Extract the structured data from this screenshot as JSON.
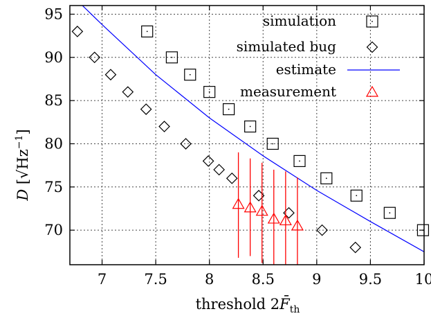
{
  "chart_data": {
    "type": "scatter",
    "xlabel": "threshold 2F̄th",
    "ylabel": "D [√Hz⁻¹]",
    "xlim": [
      6.7,
      10.0
    ],
    "ylim": [
      66.0,
      96.0
    ],
    "x_ticks": [
      7,
      7.5,
      8,
      8.5,
      9,
      9.5,
      10
    ],
    "x_tick_labels": [
      "7",
      "7.5",
      "8",
      "8.5",
      "9",
      "9.5",
      "10"
    ],
    "y_ticks": [
      70,
      75,
      80,
      85,
      90,
      95
    ],
    "y_tick_labels": [
      "70",
      "75",
      "80",
      "85",
      "90",
      "95"
    ],
    "grid": true,
    "legend_placement": "top-right",
    "series": [
      {
        "name": "simulation",
        "marker": "square",
        "color": "#000000",
        "points": [
          [
            7.42,
            93
          ],
          [
            7.65,
            90
          ],
          [
            7.82,
            88
          ],
          [
            8.0,
            86
          ],
          [
            8.18,
            84
          ],
          [
            8.38,
            82
          ],
          [
            8.59,
            80
          ],
          [
            8.84,
            78
          ],
          [
            9.09,
            76
          ],
          [
            9.37,
            74
          ],
          [
            9.68,
            72
          ],
          [
            9.99,
            70
          ]
        ]
      },
      {
        "name": "simulated bug",
        "marker": "diamond",
        "color": "#000000",
        "points": [
          [
            6.77,
            93
          ],
          [
            6.93,
            90
          ],
          [
            7.08,
            88
          ],
          [
            7.24,
            86
          ],
          [
            7.41,
            84
          ],
          [
            7.58,
            82
          ],
          [
            7.78,
            80
          ],
          [
            7.99,
            78
          ],
          [
            8.09,
            77
          ],
          [
            8.21,
            76
          ],
          [
            8.46,
            74
          ],
          [
            8.74,
            72
          ],
          [
            9.05,
            70
          ],
          [
            9.36,
            68
          ]
        ]
      },
      {
        "name": "estimate",
        "marker": "line",
        "color": "#0000ff",
        "points": [
          [
            6.7,
            97.4
          ],
          [
            7.0,
            93.8
          ],
          [
            7.5,
            88.0
          ],
          [
            8.0,
            83.0
          ],
          [
            8.5,
            78.6
          ],
          [
            9.0,
            74.6
          ],
          [
            9.5,
            71.0
          ],
          [
            10.0,
            67.5
          ]
        ]
      },
      {
        "name": "measurement",
        "marker": "triangle",
        "color": "#ff0000",
        "points": [
          {
            "x": 8.27,
            "y": 73.0,
            "ylow": 66.8,
            "yhigh": 79.0
          },
          {
            "x": 8.38,
            "y": 72.6,
            "ylow": 67.0,
            "yhigh": 78.3
          },
          {
            "x": 8.49,
            "y": 72.2,
            "ylow": 66.2,
            "yhigh": 77.8
          },
          {
            "x": 8.6,
            "y": 71.3,
            "ylow": 66.0,
            "yhigh": 77.0
          },
          {
            "x": 8.71,
            "y": 71.1,
            "ylow": 66.0,
            "yhigh": 76.8
          },
          {
            "x": 8.82,
            "y": 70.5,
            "ylow": 66.0,
            "yhigh": 76.1
          }
        ]
      }
    ]
  }
}
